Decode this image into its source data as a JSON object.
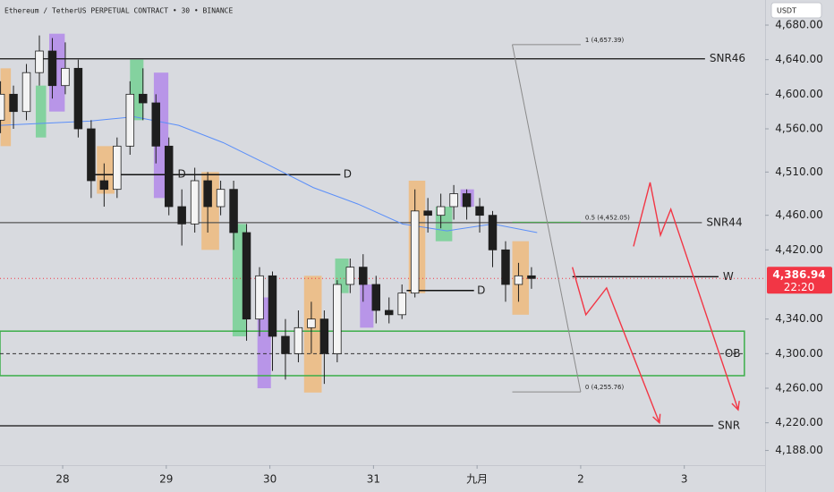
{
  "chart_data": {
    "type": "candlestick",
    "title": "Ethereum / TetherUS PERPETUAL CONTRACT • 30 • BINANCE",
    "currency": "USDT",
    "x": [
      -0.6,
      -0.475,
      -0.35,
      -0.225,
      -0.1,
      0.025,
      0.15,
      0.275,
      0.4,
      0.525,
      0.65,
      0.775,
      0.9,
      1.025,
      1.15,
      1.275,
      1.4,
      1.525,
      1.65,
      1.775,
      1.9,
      2.025,
      2.15,
      2.275,
      2.4,
      2.525,
      2.65,
      2.775,
      2.9,
      3.025,
      3.15,
      3.275,
      3.4,
      3.525,
      3.65,
      3.775,
      3.9,
      4.025,
      4.15,
      4.275,
      4.4,
      4.525
    ],
    "open": [
      4570,
      4600,
      4580,
      4625,
      4650,
      4610,
      4630,
      4560,
      4500,
      4490,
      4540,
      4600,
      4590,
      4540,
      4470,
      4450,
      4500,
      4470,
      4490,
      4440,
      4340,
      4390,
      4320,
      4300,
      4330,
      4340,
      4300,
      4380,
      4400,
      4380,
      4350,
      4345,
      4370,
      4465,
      4460,
      4470,
      4485,
      4470,
      4460,
      4420,
      4380,
      4390
    ],
    "high": [
      4615,
      4610,
      4635,
      4668,
      4665,
      4660,
      4640,
      4570,
      4520,
      4550,
      4615,
      4630,
      4600,
      4550,
      4490,
      4515,
      4510,
      4500,
      4500,
      4450,
      4400,
      4395,
      4340,
      4350,
      4360,
      4350,
      4385,
      4410,
      4415,
      4390,
      4365,
      4380,
      4490,
      4480,
      4485,
      4495,
      4490,
      4480,
      4465,
      4430,
      4405,
      4400
    ],
    "low": [
      4555,
      4560,
      4570,
      4610,
      4595,
      4600,
      4550,
      4480,
      4470,
      4480,
      4530,
      4570,
      4520,
      4460,
      4425,
      4440,
      4440,
      4460,
      4420,
      4315,
      4320,
      4280,
      4270,
      4290,
      4300,
      4265,
      4290,
      4370,
      4360,
      4335,
      4335,
      4340,
      4365,
      4440,
      4445,
      4455,
      4455,
      4440,
      4400,
      4360,
      4360,
      4375
    ],
    "close": [
      4600,
      4580,
      4625,
      4650,
      4610,
      4630,
      4560,
      4500,
      4490,
      4540,
      4600,
      4590,
      4540,
      4470,
      4450,
      4500,
      4470,
      4490,
      4440,
      4340,
      4390,
      4320,
      4300,
      4330,
      4340,
      4300,
      4380,
      4400,
      4380,
      4350,
      4345,
      4370,
      4465,
      4460,
      4470,
      4485,
      4470,
      4460,
      4420,
      4380,
      4390,
      4386.94
    ],
    "up_color": "#f4f4f4",
    "down_color": "#1e1e1e",
    "xlim": [
      -0.605,
      6.78
    ],
    "xticks": [
      {
        "value": 0,
        "label": "28"
      },
      {
        "value": 1,
        "label": "29"
      },
      {
        "value": 2,
        "label": "30"
      },
      {
        "value": 3,
        "label": "31"
      },
      {
        "value": 4,
        "label": "九月"
      },
      {
        "value": 5,
        "label": "2"
      },
      {
        "value": 6,
        "label": "3"
      }
    ],
    "ylim": [
      4171,
      4709
    ],
    "yticks": [
      {
        "value": 4680,
        "label": "4,680.00"
      },
      {
        "value": 4640,
        "label": "4,640.00"
      },
      {
        "value": 4600,
        "label": "4,600.00"
      },
      {
        "value": 4560,
        "label": "4,560.00"
      },
      {
        "value": 4510,
        "label": "4,510.00"
      },
      {
        "value": 4460,
        "label": "4,460.00"
      },
      {
        "value": 4420,
        "label": "4,420.00"
      },
      {
        "value": 4340,
        "label": "4,340.00"
      },
      {
        "value": 4300,
        "label": "4,300.00"
      },
      {
        "value": 4260,
        "label": "4,260.00"
      },
      {
        "value": 4220,
        "label": "4,220.00"
      },
      {
        "value": 4188,
        "label": "4,188.00"
      }
    ],
    "last_price": {
      "value": 4386.94,
      "label": "4,386.94",
      "countdown": "22:20",
      "color": "#f23645"
    },
    "moving_average": {
      "color": "#5b8ff9",
      "x": [
        -0.6,
        0.26,
        0.69,
        1.12,
        1.55,
        1.99,
        2.42,
        2.85,
        3.28,
        3.71,
        4.15,
        4.58
      ],
      "values": [
        4564,
        4569,
        4574,
        4564,
        4544,
        4518,
        4492,
        4473,
        4450,
        4442,
        4450,
        4440
      ]
    },
    "highlights": [
      {
        "x0": -0.6,
        "x1": -0.5,
        "low": 4540,
        "high": 4630,
        "color": "#f0b877"
      },
      {
        "x0": -0.26,
        "x1": -0.16,
        "low": 4550,
        "high": 4610,
        "color": "#6fd08f"
      },
      {
        "x0": -0.13,
        "x1": 0.02,
        "low": 4580,
        "high": 4670,
        "color": "#b083ea"
      },
      {
        "x0": 0.33,
        "x1": 0.5,
        "low": 4485,
        "high": 4540,
        "color": "#f0b877"
      },
      {
        "x0": 0.65,
        "x1": 0.78,
        "low": 4570,
        "high": 4640,
        "color": "#6fd08f"
      },
      {
        "x0": 0.88,
        "x1": 1.02,
        "low": 4480,
        "high": 4625,
        "color": "#b083ea"
      },
      {
        "x0": 1.34,
        "x1": 1.51,
        "low": 4420,
        "high": 4510,
        "color": "#f0b877"
      },
      {
        "x0": 1.64,
        "x1": 1.77,
        "low": 4320,
        "high": 4450,
        "color": "#6fd08f"
      },
      {
        "x0": 1.88,
        "x1": 2.01,
        "low": 4260,
        "high": 4365,
        "color": "#b083ea"
      },
      {
        "x0": 2.33,
        "x1": 2.5,
        "low": 4255,
        "high": 4390,
        "color": "#f0b877"
      },
      {
        "x0": 2.63,
        "x1": 2.76,
        "low": 4370,
        "high": 4410,
        "color": "#6fd08f"
      },
      {
        "x0": 2.87,
        "x1": 3.0,
        "low": 4330,
        "high": 4380,
        "color": "#b083ea"
      },
      {
        "x0": 3.34,
        "x1": 3.5,
        "low": 4370,
        "high": 4500,
        "color": "#f0b877"
      },
      {
        "x0": 3.6,
        "x1": 3.76,
        "low": 4430,
        "high": 4470,
        "color": "#6fd08f"
      },
      {
        "x0": 3.84,
        "x1": 3.97,
        "low": 4470,
        "high": 4490,
        "color": "#b083ea"
      },
      {
        "x0": 4.34,
        "x1": 4.5,
        "low": 4345,
        "high": 4430,
        "color": "#f0b877"
      }
    ],
    "levels": [
      {
        "value": 4641,
        "label": "SNR46",
        "x0": -0.605,
        "x1": 6.2,
        "color": "#111111"
      },
      {
        "value": 4451.5,
        "label": "SNR44",
        "x0": -0.605,
        "x1": 6.17,
        "color": "#555555"
      },
      {
        "value": 4389,
        "label": "W",
        "x0": 4.92,
        "x1": 6.33,
        "color": "#111111"
      },
      {
        "value": 4216.5,
        "label": "SNR",
        "x0": -0.605,
        "x1": 6.28,
        "color": "#111111"
      }
    ],
    "zone": {
      "low": 4274.5,
      "high": 4326,
      "mid": 4300,
      "x1": 6.58,
      "label": "OB",
      "color": "#3cae4a"
    },
    "d_lines": [
      {
        "value": 4507,
        "x0": 0.26,
        "x1": 2.68,
        "labels": [
          {
            "text": "D",
            "x": 1.15
          },
          {
            "text": "D",
            "x": 2.75
          }
        ]
      },
      {
        "value": 4373,
        "x0": 3.32,
        "x1": 3.97,
        "labels": [
          {
            "text": "D",
            "x": 4.04
          }
        ]
      }
    ],
    "fib": {
      "color": "#8a8a8a",
      "x0": 4.34,
      "x1": 5.0,
      "levels": [
        {
          "value": 4657.39,
          "label": "1 (4,657.39)",
          "color": "#8a8a8a"
        },
        {
          "value": 4452.05,
          "label": "0.5 (4,452.05)",
          "color": "#4caf50"
        },
        {
          "value": 4255.76,
          "label": "0 (4,255.76)",
          "color": "#8a8a8a"
        }
      ]
    },
    "projections": [
      {
        "color": "#f23645",
        "x": [
          4.92,
          5.05,
          5.25,
          5.76
        ],
        "values": [
          4400,
          4345,
          4376,
          4220
        ]
      },
      {
        "color": "#f23645",
        "x": [
          5.51,
          5.67,
          5.77,
          5.87,
          6.52
        ],
        "values": [
          4424,
          4498,
          4437,
          4467,
          4235
        ]
      }
    ]
  }
}
